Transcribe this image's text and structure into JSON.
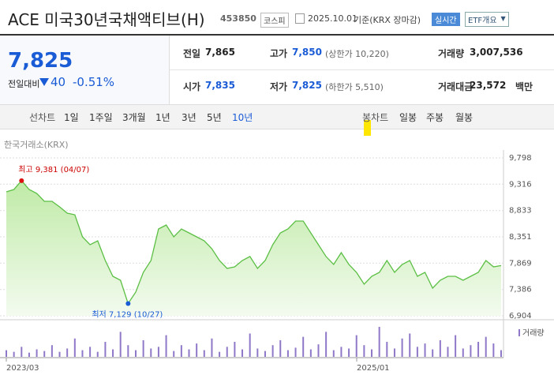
{
  "header": {
    "title": "ACE 미국30년국채액티브(H)",
    "code": "453850",
    "market": "코스피",
    "date": "2025.10.01",
    "basis": "기준(KRX 장마감)",
    "realtime": "실시간",
    "etf_info": "ETF개요"
  },
  "quote": {
    "price": "7,825",
    "change_label": "전일대비",
    "change": "40",
    "change_pct": "-0.51%",
    "fields": [
      {
        "label": "전일",
        "value": "7,865"
      },
      {
        "label": "고가",
        "value": "7,850",
        "note": "(상한가 10,220)"
      },
      {
        "label": "거래량",
        "value": "3,007,536"
      },
      {
        "label": "시가",
        "value": "7,835"
      },
      {
        "label": "저가",
        "value": "7,825",
        "note": "(하한가 5,510)"
      },
      {
        "label": "거래대금",
        "value": "23,572",
        "unit": "백만"
      }
    ]
  },
  "tabs": {
    "line": [
      "선차트",
      "1일",
      "1주일",
      "3개월",
      "1년",
      "3년",
      "5년",
      "10년"
    ],
    "candle": [
      "봉차트",
      "일봉",
      "주봉",
      "월봉"
    ]
  },
  "source": "한국거래소(KRX)",
  "chart_data": {
    "type": "line",
    "color": "#5cbf45",
    "values": [
      9176,
      9219,
      9381,
      9219,
      9147,
      9002,
      9002,
      8901,
      8785,
      8756,
      8351,
      8206,
      8279,
      7917,
      7628,
      7555,
      7129,
      7338,
      7700,
      7917,
      8496,
      8568,
      8351,
      8496,
      8423,
      8351,
      8279,
      8134,
      7917,
      7772,
      7801,
      7917,
      7990,
      7772,
      7917,
      8206,
      8423,
      8496,
      8640,
      8640,
      8423,
      8206,
      7990,
      7845,
      8062,
      7845,
      7700,
      7483,
      7628,
      7700,
      7917,
      7700,
      7845,
      7917,
      7628,
      7700,
      7411,
      7555,
      7628,
      7628,
      7555,
      7628,
      7700,
      7917,
      7801,
      7825
    ],
    "ylim": [
      6904,
      9798
    ],
    "yticks": [
      {
        "value": 6904,
        "label": "6,904"
      },
      {
        "value": 7386,
        "label": "7,386"
      },
      {
        "value": 7869,
        "label": "7,869"
      },
      {
        "value": 8351,
        "label": "8,351"
      },
      {
        "value": 8833,
        "label": "8,833"
      },
      {
        "value": 9316,
        "label": "9,316"
      },
      {
        "value": 9798,
        "label": "9,798"
      }
    ],
    "grid": true,
    "high_text": "최고 9,381 (04/07)",
    "low_text": "최저 7,129 (10/27)",
    "x_labels": [
      "2023/03",
      "2025/01"
    ],
    "volume": {
      "name": "거래량",
      "color": "#8f78c8",
      "values": [
        8,
        6,
        12,
        5,
        9,
        7,
        14,
        6,
        10,
        22,
        8,
        12,
        6,
        18,
        9,
        30,
        14,
        8,
        20,
        10,
        12,
        26,
        7,
        14,
        9,
        16,
        8,
        22,
        6,
        12,
        18,
        9,
        28,
        10,
        7,
        14,
        20,
        8,
        11,
        24,
        9,
        15,
        30,
        8,
        12,
        10,
        26,
        14,
        9,
        36,
        18,
        10,
        22,
        28,
        12,
        16,
        9,
        20,
        12,
        26,
        10,
        14,
        18,
        24,
        16,
        8
      ]
    }
  }
}
